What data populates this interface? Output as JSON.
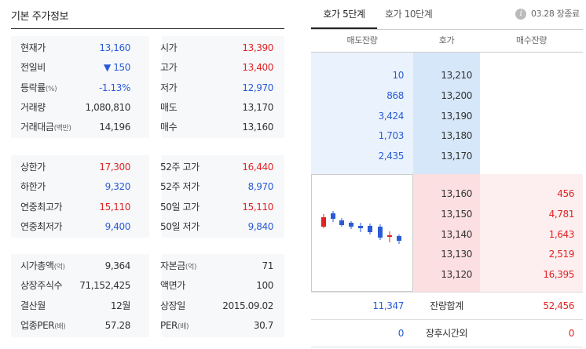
{
  "left": {
    "title": "기본 주가정보",
    "section1": [
      {
        "l1": "현재가",
        "l1s": "",
        "v1": "13,160",
        "v1c": "blue",
        "l2": "시가",
        "l2s": "",
        "v2": "13,390",
        "v2c": "red"
      },
      {
        "l1": "전일비",
        "l1s": "",
        "v1": "▼ 150",
        "v1c": "blue",
        "l2": "고가",
        "l2s": "",
        "v2": "13,400",
        "v2c": "red"
      },
      {
        "l1": "등락률",
        "l1s": "(%)",
        "v1": "-1.13%",
        "v1c": "blue",
        "l2": "저가",
        "l2s": "",
        "v2": "12,970",
        "v2c": "blue"
      },
      {
        "l1": "거래량",
        "l1s": "",
        "v1": "1,080,810",
        "v1c": "dark",
        "l2": "매도",
        "l2s": "",
        "v2": "13,170",
        "v2c": "dark"
      },
      {
        "l1": "거래대금",
        "l1s": "(백만)",
        "v1": "14,196",
        "v1c": "dark",
        "l2": "매수",
        "l2s": "",
        "v2": "13,160",
        "v2c": "dark"
      }
    ],
    "section2": [
      {
        "l1": "상한가",
        "l1s": "",
        "v1": "17,300",
        "v1c": "red",
        "l2": "52주 고가",
        "l2s": "",
        "v2": "16,440",
        "v2c": "red"
      },
      {
        "l1": "하한가",
        "l1s": "",
        "v1": "9,320",
        "v1c": "blue",
        "l2": "52주 저가",
        "l2s": "",
        "v2": "8,970",
        "v2c": "blue"
      },
      {
        "l1": "연중최고가",
        "l1s": "",
        "v1": "15,110",
        "v1c": "red",
        "l2": "50일 고가",
        "l2s": "",
        "v2": "15,110",
        "v2c": "red"
      },
      {
        "l1": "연중최저가",
        "l1s": "",
        "v1": "9,400",
        "v1c": "blue",
        "l2": "50일 저가",
        "l2s": "",
        "v2": "9,840",
        "v2c": "blue"
      }
    ],
    "section3": [
      {
        "l1": "시가총액",
        "l1s": "(억)",
        "v1": "9,364",
        "v1c": "dark",
        "l2": "자본금",
        "l2s": "(억)",
        "v2": "71",
        "v2c": "dark"
      },
      {
        "l1": "상장주식수",
        "l1s": "",
        "v1": "71,152,425",
        "v1c": "dark",
        "l2": "액면가",
        "l2s": "",
        "v2": "100",
        "v2c": "dark"
      },
      {
        "l1": "결산월",
        "l1s": "",
        "v1": "12월",
        "v1c": "dark",
        "l2": "상장일",
        "l2s": "",
        "v2": "2015.09.02",
        "v2c": "dark"
      },
      {
        "l1": "업종PER",
        "l1s": "(배)",
        "v1": "57.28",
        "v1c": "dark",
        "l2": "PER",
        "l2s": "(배)",
        "v2": "30.7",
        "v2c": "dark"
      }
    ]
  },
  "right": {
    "tab_active": "호가 5단계",
    "tab_other": "호가 10단계",
    "status": "03.28 장종료",
    "info_glyph": "i",
    "headers": {
      "ask": "매도잔량",
      "price": "호가",
      "bid": "매수잔량"
    },
    "asks": [
      {
        "qty": "10",
        "price": "13,210"
      },
      {
        "qty": "868",
        "price": "13,200"
      },
      {
        "qty": "3,424",
        "price": "13,190"
      },
      {
        "qty": "1,703",
        "price": "13,180"
      },
      {
        "qty": "2,435",
        "price": "13,170"
      }
    ],
    "bids": [
      {
        "price": "13,160",
        "qty": "456"
      },
      {
        "price": "13,150",
        "qty": "4,781"
      },
      {
        "price": "13,140",
        "qty": "1,643"
      },
      {
        "price": "13,130",
        "qty": "2,519"
      },
      {
        "price": "13,120",
        "qty": "16,395"
      }
    ],
    "total": {
      "ask": "11,347",
      "label": "잔량합계",
      "bid": "52,456"
    },
    "after_hours": {
      "ask": "0",
      "label": "장후시간외",
      "bid": "0"
    },
    "colors": {
      "up": "#e02424",
      "down": "#2a5bd7"
    }
  }
}
